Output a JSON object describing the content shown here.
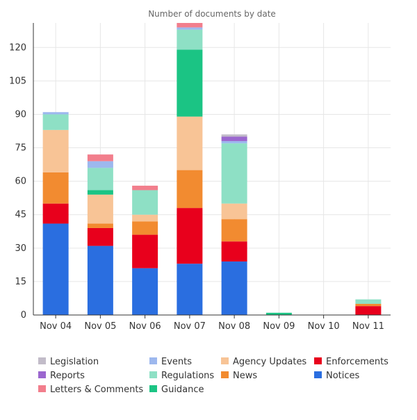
{
  "chart_data": {
    "type": "bar",
    "stacked": true,
    "title": "Number of documents by date",
    "categories": [
      "Nov 04",
      "Nov 05",
      "Nov 06",
      "Nov 07",
      "Nov 08",
      "Nov 09",
      "Nov 10",
      "Nov 11"
    ],
    "ylim": [
      0,
      131
    ],
    "yticks": [
      0,
      15,
      30,
      45,
      60,
      75,
      90,
      105,
      120
    ],
    "grid": true,
    "legend_position": "bottom",
    "series": [
      {
        "name": "Notices",
        "color": "#2a6ee0",
        "values": [
          41,
          31,
          21,
          23,
          24,
          0,
          0,
          0
        ]
      },
      {
        "name": "Enforcements",
        "color": "#e8001c",
        "values": [
          9,
          8,
          15,
          25,
          9,
          0,
          0,
          4
        ]
      },
      {
        "name": "News",
        "color": "#f28b30",
        "values": [
          14,
          2,
          6,
          17,
          10,
          0,
          0,
          1
        ]
      },
      {
        "name": "Agency Updates",
        "color": "#f8c496",
        "values": [
          19,
          13,
          3,
          24,
          7,
          0,
          0,
          0
        ]
      },
      {
        "name": "Guidance",
        "color": "#1bc484",
        "values": [
          0,
          2,
          0,
          30,
          0,
          1,
          0,
          0
        ]
      },
      {
        "name": "Regulations",
        "color": "#8ee0c5",
        "values": [
          7,
          10,
          11,
          9,
          27,
          0,
          0,
          2
        ]
      },
      {
        "name": "Events",
        "color": "#9db8ee",
        "values": [
          1,
          3,
          0,
          1,
          1,
          0,
          0,
          0
        ]
      },
      {
        "name": "Letters & Comments",
        "color": "#f27e8c",
        "values": [
          0,
          3,
          2,
          2,
          0,
          0,
          0,
          0
        ]
      },
      {
        "name": "Reports",
        "color": "#9b67cf",
        "values": [
          0,
          0,
          0,
          0,
          2,
          0,
          0,
          0
        ]
      },
      {
        "name": "Legislation",
        "color": "#c2bcc9",
        "values": [
          0,
          0,
          0,
          0,
          1,
          0,
          0,
          0
        ]
      }
    ],
    "legend_order": [
      "Legislation",
      "Events",
      "Agency Updates",
      "Enforcements",
      "Reports",
      "Regulations",
      "News",
      "Notices",
      "Letters & Comments",
      "Guidance"
    ]
  }
}
